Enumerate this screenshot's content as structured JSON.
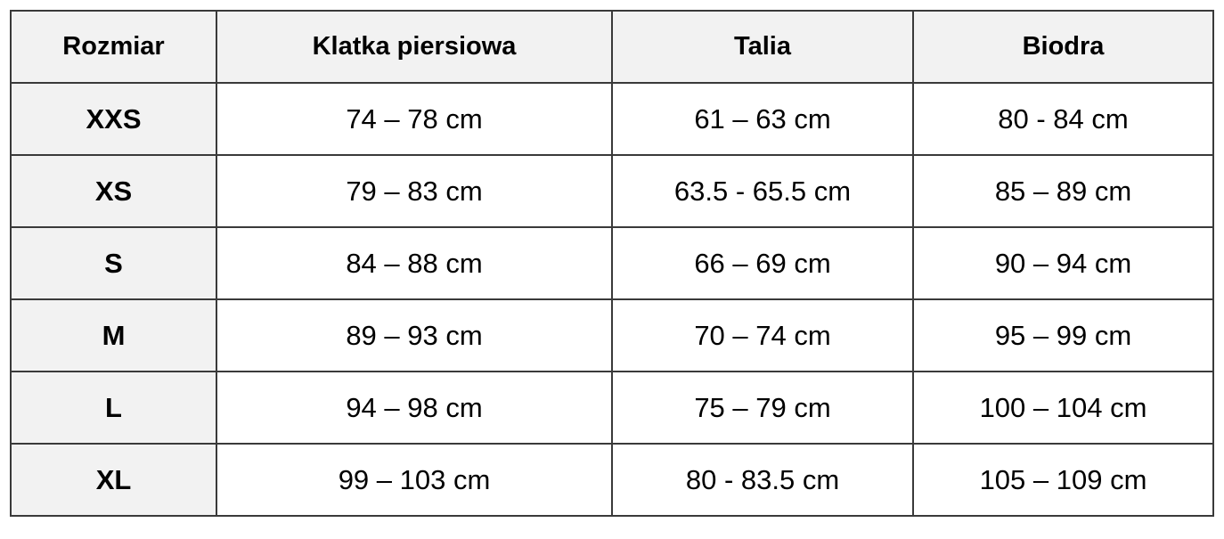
{
  "table": {
    "headers": [
      "Rozmiar",
      "Klatka piersiowa",
      "Talia",
      "Biodra"
    ],
    "rows": [
      [
        "XXS",
        "74 – 78 cm",
        "61 – 63 cm",
        "80 - 84 cm"
      ],
      [
        "XS",
        "79 – 83 cm",
        "63.5 - 65.5 cm",
        "85 – 89 cm"
      ],
      [
        "S",
        "84 – 88 cm",
        "66 – 69 cm",
        "90 – 94 cm"
      ],
      [
        "M",
        "89 – 93 cm",
        "70 – 74 cm",
        "95 – 99 cm"
      ],
      [
        "L",
        "94 – 98 cm",
        "75 – 79 cm",
        "100 – 104 cm"
      ],
      [
        "XL",
        "99 – 103 cm",
        "80 - 83.5 cm",
        "105 – 109 cm"
      ]
    ]
  }
}
